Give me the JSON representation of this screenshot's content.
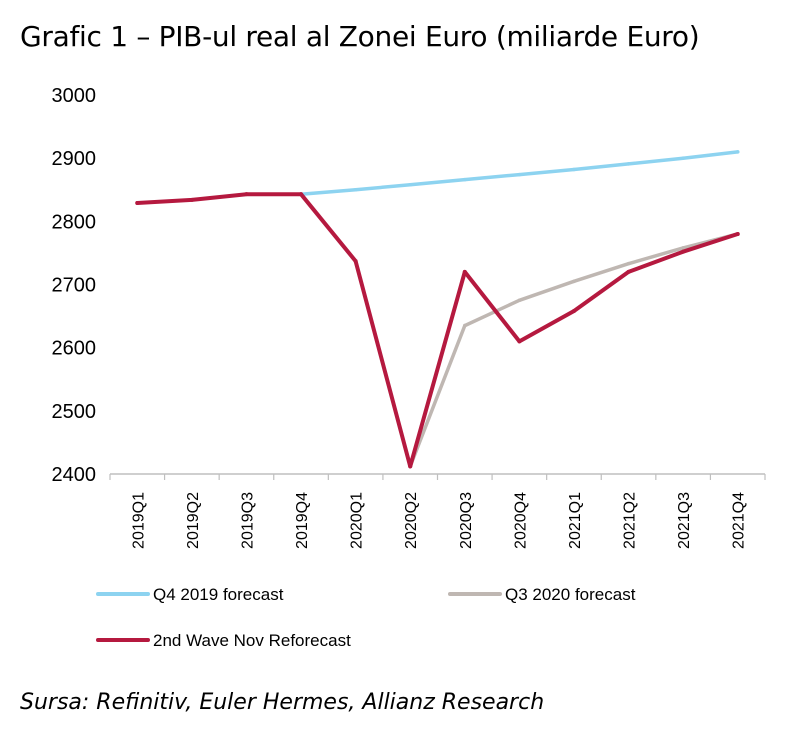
{
  "title": "Grafic 1  – PIB-ul real al Zonei Euro (miliarde Euro)",
  "source": "Sursa: Refinitiv, Euler Hermes, Allianz Research",
  "chart_data": {
    "type": "line",
    "categories": [
      "2019Q1",
      "2019Q2",
      "2019Q3",
      "2019Q4",
      "2020Q1",
      "2020Q2",
      "2020Q3",
      "2020Q4",
      "2021Q1",
      "2021Q2",
      "2021Q3",
      "2021Q4"
    ],
    "ylim": [
      2400,
      3000
    ],
    "yticks": [
      2400,
      2500,
      2600,
      2700,
      2800,
      2900,
      3000
    ],
    "grid": false,
    "legend_position": "bottom",
    "series": [
      {
        "name": "Q4 2019 forecast",
        "color": "#8dd3f0",
        "values": [
          null,
          null,
          null,
          2843,
          2850,
          2858,
          2866,
          2874,
          2882,
          2891,
          2900,
          2910
        ]
      },
      {
        "name": "Q3 2020 forecast",
        "color": "#bfb7b2",
        "values": [
          null,
          null,
          null,
          null,
          null,
          2412,
          2635,
          2675,
          2705,
          2733,
          2758,
          2780
        ]
      },
      {
        "name": "2nd Wave Nov Reforecast",
        "color": "#b5193f",
        "values": [
          2829,
          2834,
          2843,
          2843,
          2737,
          2412,
          2720,
          2610,
          2658,
          2720,
          2752,
          2780
        ]
      }
    ]
  }
}
